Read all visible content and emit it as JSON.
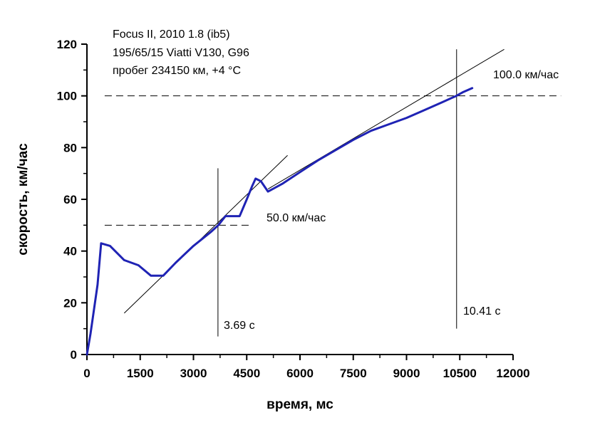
{
  "chart_data": {
    "type": "line",
    "title": "",
    "xlabel": "время, мс",
    "ylabel": "скорость, км/час",
    "xlim": [
      0,
      12000
    ],
    "ylim": [
      0,
      120
    ],
    "xticks": [
      0,
      1500,
      3000,
      4500,
      6000,
      7500,
      9000,
      10500,
      12000
    ],
    "xtick_labels": [
      "0",
      "1500",
      "3000",
      "4500",
      "6000",
      "7500",
      "9000",
      "10500",
      "12000"
    ],
    "yticks": [
      0,
      20,
      40,
      60,
      80,
      100,
      120
    ],
    "ytick_labels": [
      "0",
      "20",
      "40",
      "60",
      "80",
      "100",
      "120"
    ],
    "grid": false,
    "info_lines": [
      "Focus II, 2010 1.8 (ib5)",
      "195/65/15 Viatti V130, G96",
      "пробег 234150 км, +4 °C"
    ],
    "series": [
      {
        "color": "#1f23b4",
        "x": [
          0,
          100,
          300,
          400,
          650,
          1050,
          1450,
          1800,
          2150,
          2500,
          3000,
          3500,
          3700,
          3900,
          4300,
          4500,
          4650,
          4750,
          4900,
          5100,
          5500,
          6000,
          6500,
          7000,
          7500,
          8000,
          8500,
          9000,
          9500,
          10000,
          10400,
          10600,
          10850
        ],
        "y": [
          0,
          8,
          27,
          43,
          42,
          36.5,
          34.5,
          30.5,
          30.5,
          35.5,
          42,
          47.5,
          50,
          53.5,
          53.5,
          60,
          65,
          68,
          67,
          63,
          66,
          70.5,
          75,
          79,
          83,
          86.5,
          89,
          91.5,
          94.5,
          97.5,
          100,
          101.5,
          103
        ]
      }
    ],
    "tangent_lines": [
      {
        "color": "#000000",
        "x": [
          1050,
          5650
        ],
        "y": [
          16,
          77
        ]
      },
      {
        "color": "#000000",
        "x": [
          5100,
          11750
        ],
        "y": [
          64,
          118
        ]
      }
    ],
    "reference_lines": [
      {
        "orientation": "horizontal",
        "value": 50,
        "from": 500,
        "to": 4650,
        "label": "50.0 км/час"
      },
      {
        "orientation": "horizontal",
        "value": 100,
        "from": 500,
        "to": 13350,
        "label": "100.0 км/час"
      },
      {
        "orientation": "vertical",
        "value": 3690,
        "from": 7,
        "to": 72,
        "label": "3.69 с"
      },
      {
        "orientation": "vertical",
        "value": 10410,
        "from": 10,
        "to": 118,
        "label": "10.41 с"
      }
    ]
  }
}
